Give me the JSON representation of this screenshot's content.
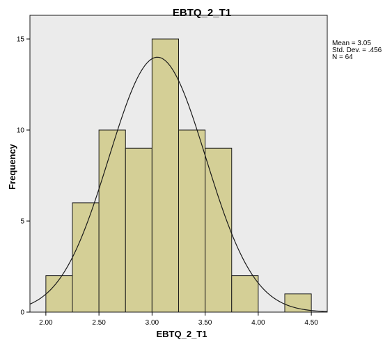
{
  "colors": {
    "plot_background": "#ebebeb",
    "bar_fill": "#d4cf96",
    "bar_stroke": "#1a1a1a",
    "curve": "#1a1a1a"
  },
  "chart_data": {
    "type": "bar",
    "chart_subtype": "histogram",
    "title": "EBTQ_2_T1",
    "xlabel": "EBTQ_2_T1",
    "ylabel": "Frequency",
    "xlim": [
      1.85,
      4.65
    ],
    "ylim": [
      0,
      16.3
    ],
    "x_ticks": [
      2.0,
      2.5,
      3.0,
      3.5,
      4.0,
      4.5
    ],
    "x_tick_labels": [
      "2.00",
      "2.50",
      "3.00",
      "3.50",
      "4.00",
      "4.50"
    ],
    "y_ticks": [
      0,
      5,
      10,
      15
    ],
    "y_tick_labels": [
      "0",
      "5",
      "10",
      "15"
    ],
    "grid": false,
    "bins": [
      {
        "start": 2.0,
        "end": 2.25,
        "count": 2
      },
      {
        "start": 2.25,
        "end": 2.5,
        "count": 6
      },
      {
        "start": 2.5,
        "end": 2.75,
        "count": 10
      },
      {
        "start": 2.75,
        "end": 3.0,
        "count": 9
      },
      {
        "start": 3.0,
        "end": 3.25,
        "count": 15
      },
      {
        "start": 3.25,
        "end": 3.5,
        "count": 10
      },
      {
        "start": 3.5,
        "end": 3.75,
        "count": 9
      },
      {
        "start": 3.75,
        "end": 4.0,
        "count": 2
      },
      {
        "start": 4.25,
        "end": 4.5,
        "count": 1
      }
    ],
    "normal_curve": {
      "mean": 3.05,
      "std_dev": 0.456,
      "n": 64,
      "bin_width": 0.25
    },
    "stats_box": {
      "mean_line": "Mean = 3.05",
      "std_line": "Std. Dev. = .456",
      "n_line": "N = 64"
    }
  }
}
